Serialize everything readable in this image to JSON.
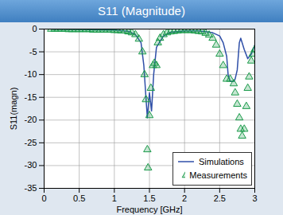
{
  "chart_data": {
    "type": "line",
    "title": "S11 (Magnitude)",
    "x_label": "Frequency [GHz]",
    "y_label": "S11(magn)",
    "xlim": [
      0,
      3
    ],
    "xticks": [
      0,
      0.5,
      1,
      1.5,
      2,
      2.5,
      3
    ],
    "ylim": [
      -35,
      0
    ],
    "yticks": [
      -35,
      -30,
      -25,
      -20,
      -15,
      -10,
      -5,
      0
    ],
    "grid": true,
    "legend": "lower right",
    "series": [
      {
        "name": "Simulations",
        "color": "#2f4fa8",
        "type": "line",
        "line_style": "solid",
        "x": [
          0.1,
          0.5,
          1.0,
          1.2,
          1.3,
          1.38,
          1.42,
          1.45,
          1.47,
          1.5,
          1.53,
          1.56,
          1.6,
          1.7,
          1.8,
          2.0,
          2.2,
          2.4,
          2.5,
          2.55,
          2.6,
          2.62,
          2.65,
          2.7,
          2.72,
          2.75,
          2.78,
          2.8,
          2.85,
          2.9,
          2.95,
          3.0
        ],
        "values": [
          0,
          -0.1,
          -0.2,
          -0.5,
          -1.2,
          -3,
          -8,
          -15,
          -19.5,
          -14,
          -18,
          -10,
          -4,
          -1.5,
          -0.7,
          -0.4,
          -0.4,
          -0.8,
          -1.5,
          -3,
          -6,
          -10,
          -11.5,
          -11.5,
          -11,
          -9,
          -3,
          -2,
          -4.5,
          -6.5,
          -5.5,
          -3.5
        ]
      },
      {
        "name": "Measurements",
        "color": "#1a9a4a",
        "type": "scatter",
        "marker": "triangle",
        "x": [
          0.1,
          0.15,
          0.2,
          0.25,
          0.3,
          0.35,
          0.4,
          0.45,
          0.5,
          0.55,
          0.6,
          0.65,
          0.7,
          0.75,
          0.8,
          0.85,
          0.9,
          0.95,
          1.0,
          1.05,
          1.1,
          1.15,
          1.2,
          1.25,
          1.3,
          1.35,
          1.4,
          1.43,
          1.45,
          1.47,
          1.48,
          1.5,
          1.52,
          1.55,
          1.57,
          1.6,
          1.62,
          1.65,
          1.7,
          1.75,
          1.8,
          1.85,
          1.9,
          1.95,
          2.0,
          2.05,
          2.1,
          2.15,
          2.2,
          2.25,
          2.3,
          2.35,
          2.4,
          2.45,
          2.5,
          2.55,
          2.6,
          2.65,
          2.7,
          2.72,
          2.75,
          2.78,
          2.8,
          2.82,
          2.85,
          2.88,
          2.9,
          2.92,
          2.95,
          2.97,
          3.0
        ],
        "values": [
          0,
          0,
          0,
          0,
          0,
          -0.1,
          -0.1,
          -0.1,
          -0.1,
          -0.1,
          -0.1,
          -0.1,
          -0.2,
          -0.2,
          -0.2,
          -0.2,
          -0.2,
          -0.2,
          -0.3,
          -0.3,
          -0.4,
          -0.4,
          -0.6,
          -0.8,
          -1.2,
          -2.2,
          -5,
          -10,
          -15.5,
          -26.5,
          -30.5,
          -19,
          -13,
          -8,
          -7.5,
          -8,
          -3,
          -2,
          -1.2,
          -0.8,
          -0.6,
          -0.5,
          -0.4,
          -0.3,
          -0.3,
          -0.3,
          -0.3,
          -0.4,
          -0.5,
          -0.6,
          -0.9,
          -1.3,
          -2,
          -3.5,
          -5.5,
          -8,
          -11,
          -11,
          -12,
          -14,
          -16.5,
          -19.5,
          -22,
          -23.5,
          -22,
          -17,
          -13,
          -10.5,
          -7,
          -5.5,
          -4.5
        ]
      }
    ]
  }
}
